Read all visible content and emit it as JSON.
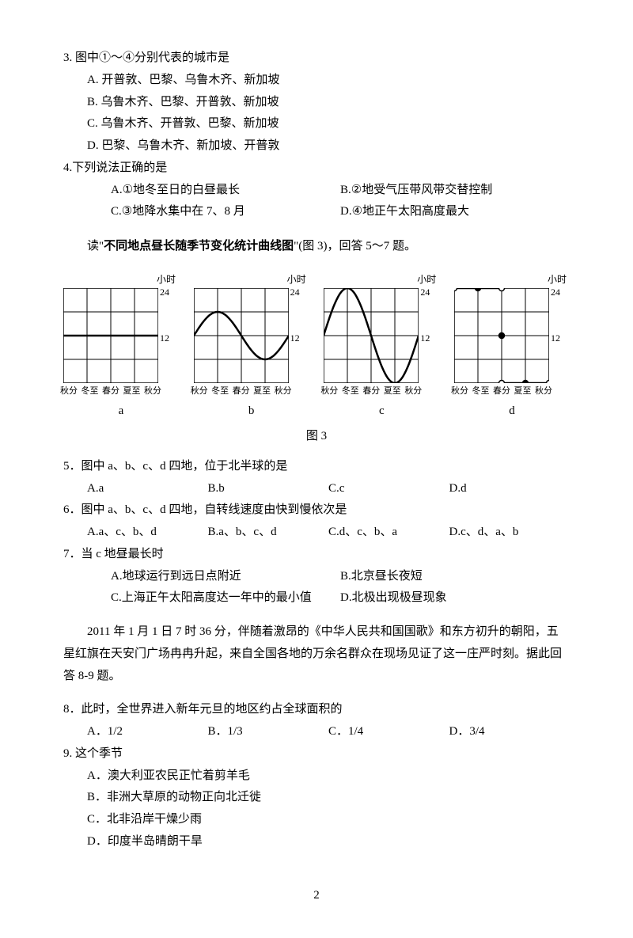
{
  "q3": {
    "stem": "3. 图中①～④分别代表的城市是",
    "A": "A. 开普敦、巴黎、乌鲁木齐、新加坡",
    "B": "B. 乌鲁木齐、巴黎、开普敦、新加坡",
    "C": "C. 乌鲁木齐、开普敦、巴黎、新加坡",
    "D": "D. 巴黎、乌鲁木齐、新加坡、开普敦"
  },
  "q4": {
    "stem": "4.下列说法正确的是",
    "A": "A.①地冬至日的白昼最长",
    "B": "B.②地受气压带风带交替控制",
    "C": "C.③地降水集中在 7、8 月",
    "D": "D.④地正午太阳高度最大"
  },
  "intro1_pre": "读\"",
  "intro1_bold": "不同地点昼长随季节变化统计曲线图",
  "intro1_post": "\"(图 3)，回答 5～7 题。",
  "fig": {
    "caption": "图 3",
    "ylab_unit": "小时",
    "ytick_top": "24",
    "ytick_mid": "12",
    "xticks": [
      "秋分",
      "冬至",
      "春分",
      "夏至",
      "秋分"
    ],
    "letters": [
      "a",
      "b",
      "c",
      "d"
    ],
    "grid_color": "#000000",
    "bg": "#ffffff",
    "size": 120,
    "curves": {
      "a": {
        "type": "flat",
        "level": 0.5
      },
      "b": {
        "type": "sine",
        "amp": 0.25,
        "peak_at": 0.25
      },
      "c": {
        "type": "sine",
        "amp": 0.5,
        "peak_at": 0.25
      },
      "d": {
        "type": "polar_s"
      }
    }
  },
  "q5": {
    "stem": "5．图中 a、b、c、d 四地，位于北半球的是",
    "A": "A.a",
    "B": "B.b",
    "C": "C.c",
    "D": "D.d"
  },
  "q6": {
    "stem": "6．图中 a、b、c、d 四地，自转线速度由快到慢依次是",
    "A": "A.a、c、b、d",
    "B": "B.a、b、c、d",
    "C": "C.d、c、b、a",
    "D": "D.c、d、a、b"
  },
  "q7": {
    "stem": "7．当 c 地昼最长时",
    "A": "A.地球运行到远日点附近",
    "B": "B.北京昼长夜短",
    "C": "C.上海正午太阳高度达一年中的最小值",
    "D": "D.北极出现极昼现象"
  },
  "intro2": "2011 年 1 月 1 日 7 时 36 分，伴随着激昂的《中华人民共和国国歌》和东方初升的朝阳，五星红旗在天安门广场冉冉升起，来自全国各地的万余名群众在现场见证了这一庄严时刻。据此回答 8-9 题。",
  "q8": {
    "stem": "8．此时，全世界进入新年元旦的地区约占全球面积的",
    "A": "A．1/2",
    "B": "B．1/3",
    "C": "C．1/4",
    "D": "D．3/4"
  },
  "q9": {
    "stem": "9. 这个季节",
    "A": "A．澳大利亚农民正忙着剪羊毛",
    "B": "B．非洲大草原的动物正向北迁徙",
    "C": "C．北非沿岸干燥少雨",
    "D": "D．印度半岛晴朗干旱"
  },
  "page": "2"
}
